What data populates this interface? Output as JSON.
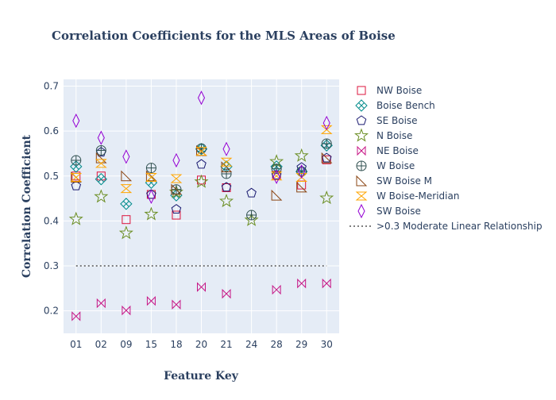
{
  "chart_data": {
    "type": "scatter",
    "title": "Correlation Coefficients for the MLS Areas of Boise",
    "xlabel": "Feature Key",
    "ylabel": "Correlation Coefficient",
    "categories": [
      "01",
      "02",
      "09",
      "15",
      "18",
      "20",
      "21",
      "24",
      "28",
      "29",
      "30"
    ],
    "ylim": [
      0.15,
      0.715
    ],
    "yticks": [
      0.2,
      0.3,
      0.4,
      0.5,
      0.6,
      0.7
    ],
    "grid": true,
    "legend_position": "right",
    "colors": {
      "plot_bg": "#e5ecf6",
      "grid": "#ffffff",
      "text": "#2a3f5f"
    },
    "series": [
      {
        "name": "NW Boise",
        "symbol": "square-open",
        "color": "#dc143c",
        "values": [
          0.5,
          0.5,
          0.403,
          0.459,
          0.413,
          0.491,
          0.474,
          null,
          0.502,
          0.48,
          0.536
        ]
      },
      {
        "name": "Boise Bench",
        "symbol": "diamond-x-open",
        "color": "#008b8b",
        "values": [
          0.521,
          0.493,
          0.438,
          0.485,
          0.457,
          0.56,
          0.521,
          null,
          0.521,
          0.51,
          0.568
        ]
      },
      {
        "name": "SE Boise",
        "symbol": "pentagon-open",
        "color": "#191970",
        "values": [
          0.478,
          0.553,
          null,
          0.459,
          0.426,
          0.526,
          0.475,
          0.462,
          0.502,
          0.519,
          0.54
        ]
      },
      {
        "name": "N Boise",
        "symbol": "star-open",
        "color": "#6b8e23",
        "values": [
          0.404,
          0.454,
          0.373,
          0.415,
          0.464,
          0.487,
          0.444,
          0.402,
          0.532,
          0.545,
          0.451
        ]
      },
      {
        "name": "NE Boise",
        "symbol": "bowtie-open",
        "color": "#c71585",
        "values": [
          0.188,
          0.217,
          0.201,
          0.222,
          0.214,
          0.253,
          0.238,
          null,
          0.247,
          0.261,
          0.261
        ]
      },
      {
        "name": "W Boise",
        "symbol": "circle-cross-open",
        "color": "#2f4f4f",
        "values": [
          0.535,
          0.557,
          null,
          0.518,
          0.47,
          0.561,
          0.505,
          0.413,
          0.516,
          0.51,
          0.572
        ]
      },
      {
        "name": "SW Boise M",
        "symbol": "triangle-sw-open",
        "color": "#8b4513",
        "values": [
          0.497,
          0.54,
          0.5,
          0.5,
          0.47,
          0.556,
          0.52,
          null,
          0.457,
          0.475,
          0.54
        ]
      },
      {
        "name": "W Boise-Meridian",
        "symbol": "hourglass-open",
        "color": "#ffa500",
        "values": [
          0.497,
          0.528,
          0.472,
          0.497,
          0.494,
          0.555,
          0.531,
          null,
          0.5,
          0.497,
          0.603
        ]
      },
      {
        "name": "SW Boise",
        "symbol": "diamond-tall-open",
        "color": "#9400d3",
        "values": [
          0.623,
          0.585,
          0.543,
          0.454,
          0.535,
          0.674,
          0.56,
          null,
          0.498,
          0.51,
          0.618
        ]
      }
    ],
    "reference_line": {
      "name": ">0.3 Moderate Linear Relationship",
      "y": 0.3,
      "style": "dotted",
      "color": "#555555"
    }
  }
}
